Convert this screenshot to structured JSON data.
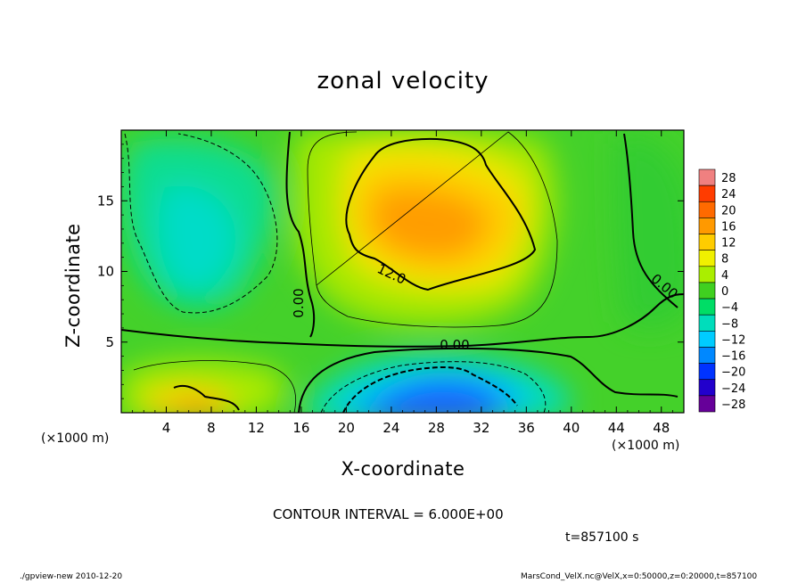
{
  "chart_data": {
    "type": "heatmap",
    "title": "zonal velocity",
    "xlabel": "X-coordinate",
    "ylabel": "Z-coordinate",
    "x_unit_left": "(×1000 m)",
    "x_unit_right": "(×1000 m)",
    "xlim": [
      0,
      50
    ],
    "ylim": [
      0,
      20
    ],
    "x_ticks": [
      4,
      8,
      12,
      16,
      20,
      24,
      28,
      32,
      36,
      40,
      44,
      48
    ],
    "y_ticks": [
      5,
      10,
      15
    ],
    "colorbar": {
      "levels": [
        28,
        24,
        20,
        16,
        12,
        8,
        4,
        0,
        -4,
        -8,
        -12,
        -16,
        -20,
        -24,
        -28
      ],
      "labels": [
        "28",
        "24",
        "20",
        "16",
        "12",
        "8",
        "4",
        "0",
        "−4",
        "−8",
        "−12",
        "−16",
        "−20",
        "−24",
        "−28"
      ],
      "colors": [
        "#f08080",
        "#ff3c00",
        "#ff6a00",
        "#ff9900",
        "#ffcc00",
        "#f0f000",
        "#aaee00",
        "#40d020",
        "#00dd66",
        "#00ddbb",
        "#00ccff",
        "#0088ff",
        "#0033ff",
        "#2200cc",
        "#660099"
      ]
    },
    "contour_labels": [
      "12.0",
      "0.00",
      "0.00",
      "0.00"
    ],
    "features": [
      {
        "name": "positive-max",
        "x": 27,
        "z": 13,
        "value": 16
      },
      {
        "name": "negative-min",
        "x": 29,
        "z": 1.5,
        "value": -16
      },
      {
        "name": "positive-surface",
        "x": 7,
        "z": 1,
        "value": 14
      },
      {
        "name": "negative-upper",
        "x": 7,
        "z": 12,
        "value": -8
      }
    ],
    "contour_interval_text": "CONTOUR INTERVAL = 6.000E+00",
    "time_text": "t=857100 s"
  },
  "footer": {
    "left": "./gpview-new   2010-12-20",
    "right": "MarsCond_VelX.nc@VelX,x=0:50000,z=0:20000,t=857100"
  }
}
